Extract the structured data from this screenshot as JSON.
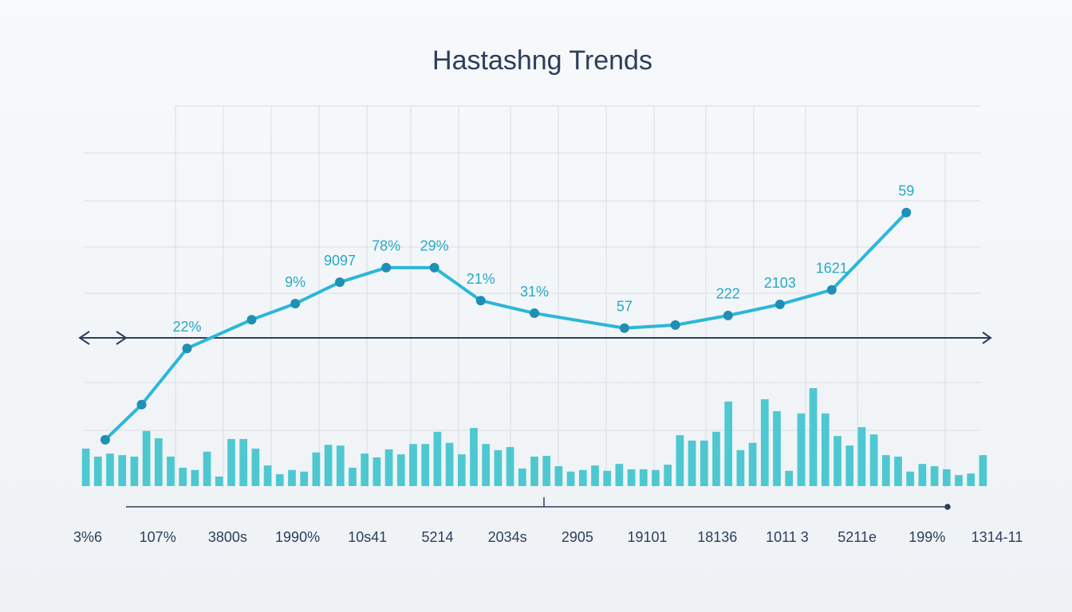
{
  "chart_data": [
    {
      "type": "line",
      "title": "Hastashng Trends",
      "color": "#2bb7d9",
      "marker_color": "#1f8fb5",
      "x": [
        2.8,
        6.8,
        11.8,
        18.9,
        23.7,
        28.6,
        33.7,
        39.0,
        44.1,
        50.0,
        59.9,
        65.5,
        71.3,
        77.0,
        82.7,
        90.9
      ],
      "values": [
        12.1,
        21.3,
        36.0,
        43.5,
        47.7,
        53.3,
        57.1,
        57.1,
        48.5,
        45.2,
        41.3,
        42.1,
        44.6,
        47.5,
        51.3,
        71.5
      ],
      "annotations": [
        null,
        null,
        "22%",
        null,
        "9%",
        "9097",
        "78%",
        "29%",
        "21%",
        "31%",
        "57",
        null,
        "222",
        "2103",
        "1621",
        "59"
      ],
      "xlim": [
        0,
        100
      ],
      "ylim": [
        0,
        100
      ]
    },
    {
      "type": "bar",
      "color": "#3cc3cc",
      "ylim": [
        0,
        100
      ],
      "values": [
        9.8,
        7.7,
        8.5,
        8.1,
        7.7,
        14.4,
        12.5,
        7.7,
        4.8,
        4.2,
        9.0,
        2.5,
        12.3,
        12.3,
        9.8,
        5.4,
        3.1,
        4.2,
        3.8,
        8.8,
        10.8,
        10.6,
        4.8,
        8.5,
        7.5,
        9.6,
        8.3,
        11.0,
        11.0,
        14.2,
        11.3,
        8.3,
        15.2,
        11.0,
        9.4,
        10.2,
        4.6,
        7.7,
        7.9,
        5.2,
        3.8,
        4.2,
        5.4,
        4.0,
        5.8,
        4.4,
        4.4,
        4.2,
        5.6,
        13.3,
        11.9,
        11.9,
        14.2,
        22.1,
        9.4,
        11.3,
        22.7,
        19.6,
        4.0,
        19.0,
        25.6,
        19.0,
        13.1,
        10.6,
        15.4,
        13.5,
        8.1,
        7.7,
        3.8,
        5.8,
        5.2,
        4.4,
        2.9,
        3.3,
        8.1
      ],
      "axis_labels": [
        "3%6",
        "107%",
        "3800s",
        "1990%",
        "10s41",
        "5214",
        "2034s",
        "2905",
        "19101",
        "18136",
        "1011 3",
        "5211e",
        "199%",
        "1314-11"
      ]
    }
  ]
}
